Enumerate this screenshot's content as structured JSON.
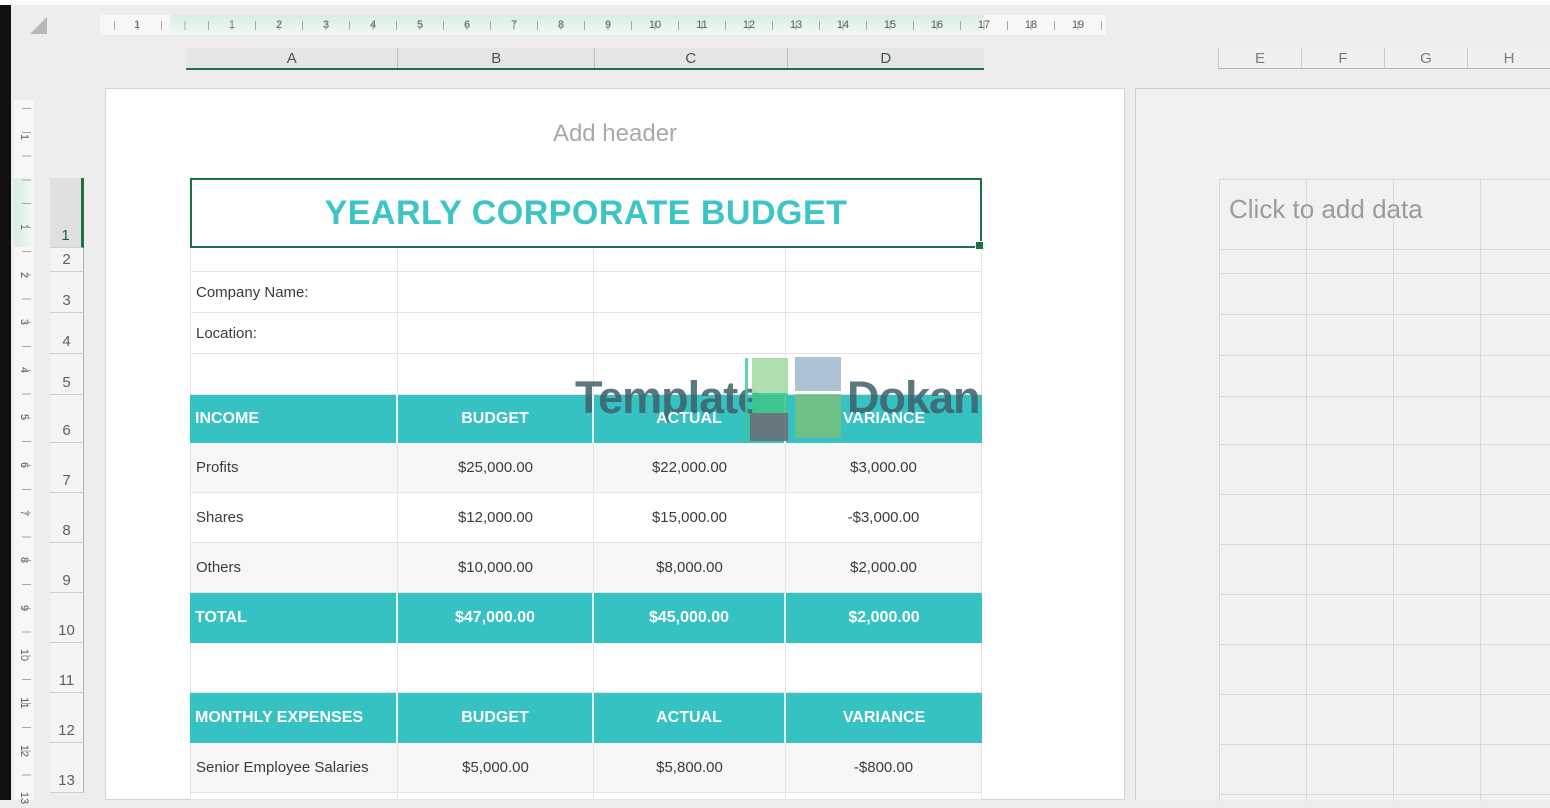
{
  "ruler": {
    "h_margin_label": "1",
    "h_numbers": [
      "1",
      "2",
      "3",
      "4",
      "5",
      "6",
      "7",
      "8",
      "9",
      "10",
      "11",
      "12",
      "13",
      "14",
      "15",
      "16",
      "17",
      "18",
      "19"
    ],
    "v_margin_label": "1",
    "v_numbers": [
      "1",
      "2",
      "3",
      "4",
      "5",
      "6",
      "7",
      "8",
      "9",
      "10",
      "11",
      "12",
      "13"
    ]
  },
  "columns": {
    "left": [
      "A",
      "B",
      "C",
      "D"
    ],
    "right": [
      "E",
      "F",
      "G",
      "H"
    ]
  },
  "row_numbers": [
    "1",
    "2",
    "3",
    "4",
    "5",
    "6",
    "7",
    "8",
    "9",
    "10",
    "11",
    "12",
    "13"
  ],
  "page": {
    "header_placeholder": "Add header",
    "title": "YEARLY CORPORATE BUDGET"
  },
  "info": {
    "company_name_label": "Company Name:",
    "location_label": "Location:"
  },
  "income_table": {
    "headers": [
      "INCOME",
      "BUDGET",
      "ACTUAL",
      "VARIANCE"
    ],
    "rows": [
      [
        "Profits",
        "$25,000.00",
        "$22,000.00",
        "$3,000.00"
      ],
      [
        "Shares",
        "$12,000.00",
        "$15,000.00",
        "-$3,000.00"
      ],
      [
        "Others",
        "$10,000.00",
        "$8,000.00",
        "$2,000.00"
      ]
    ],
    "total": [
      "TOTAL",
      "$47,000.00",
      "$45,000.00",
      "$2,000.00"
    ]
  },
  "expenses_table": {
    "headers": [
      "MONTHLY EXPENSES",
      "BUDGET",
      "ACTUAL",
      "VARIANCE"
    ],
    "rows": [
      [
        "Senior Employee Salaries",
        "$5,000.00",
        "$5,800.00",
        "-$800.00"
      ]
    ]
  },
  "next_page": {
    "placeholder": "Click to add data"
  },
  "watermark": {
    "part1": "Template",
    "part2": "Dokan"
  },
  "colors": {
    "accent_teal": "#36c2c3",
    "selection_green": "#1e7145",
    "title_teal": "#3cc5c7"
  }
}
